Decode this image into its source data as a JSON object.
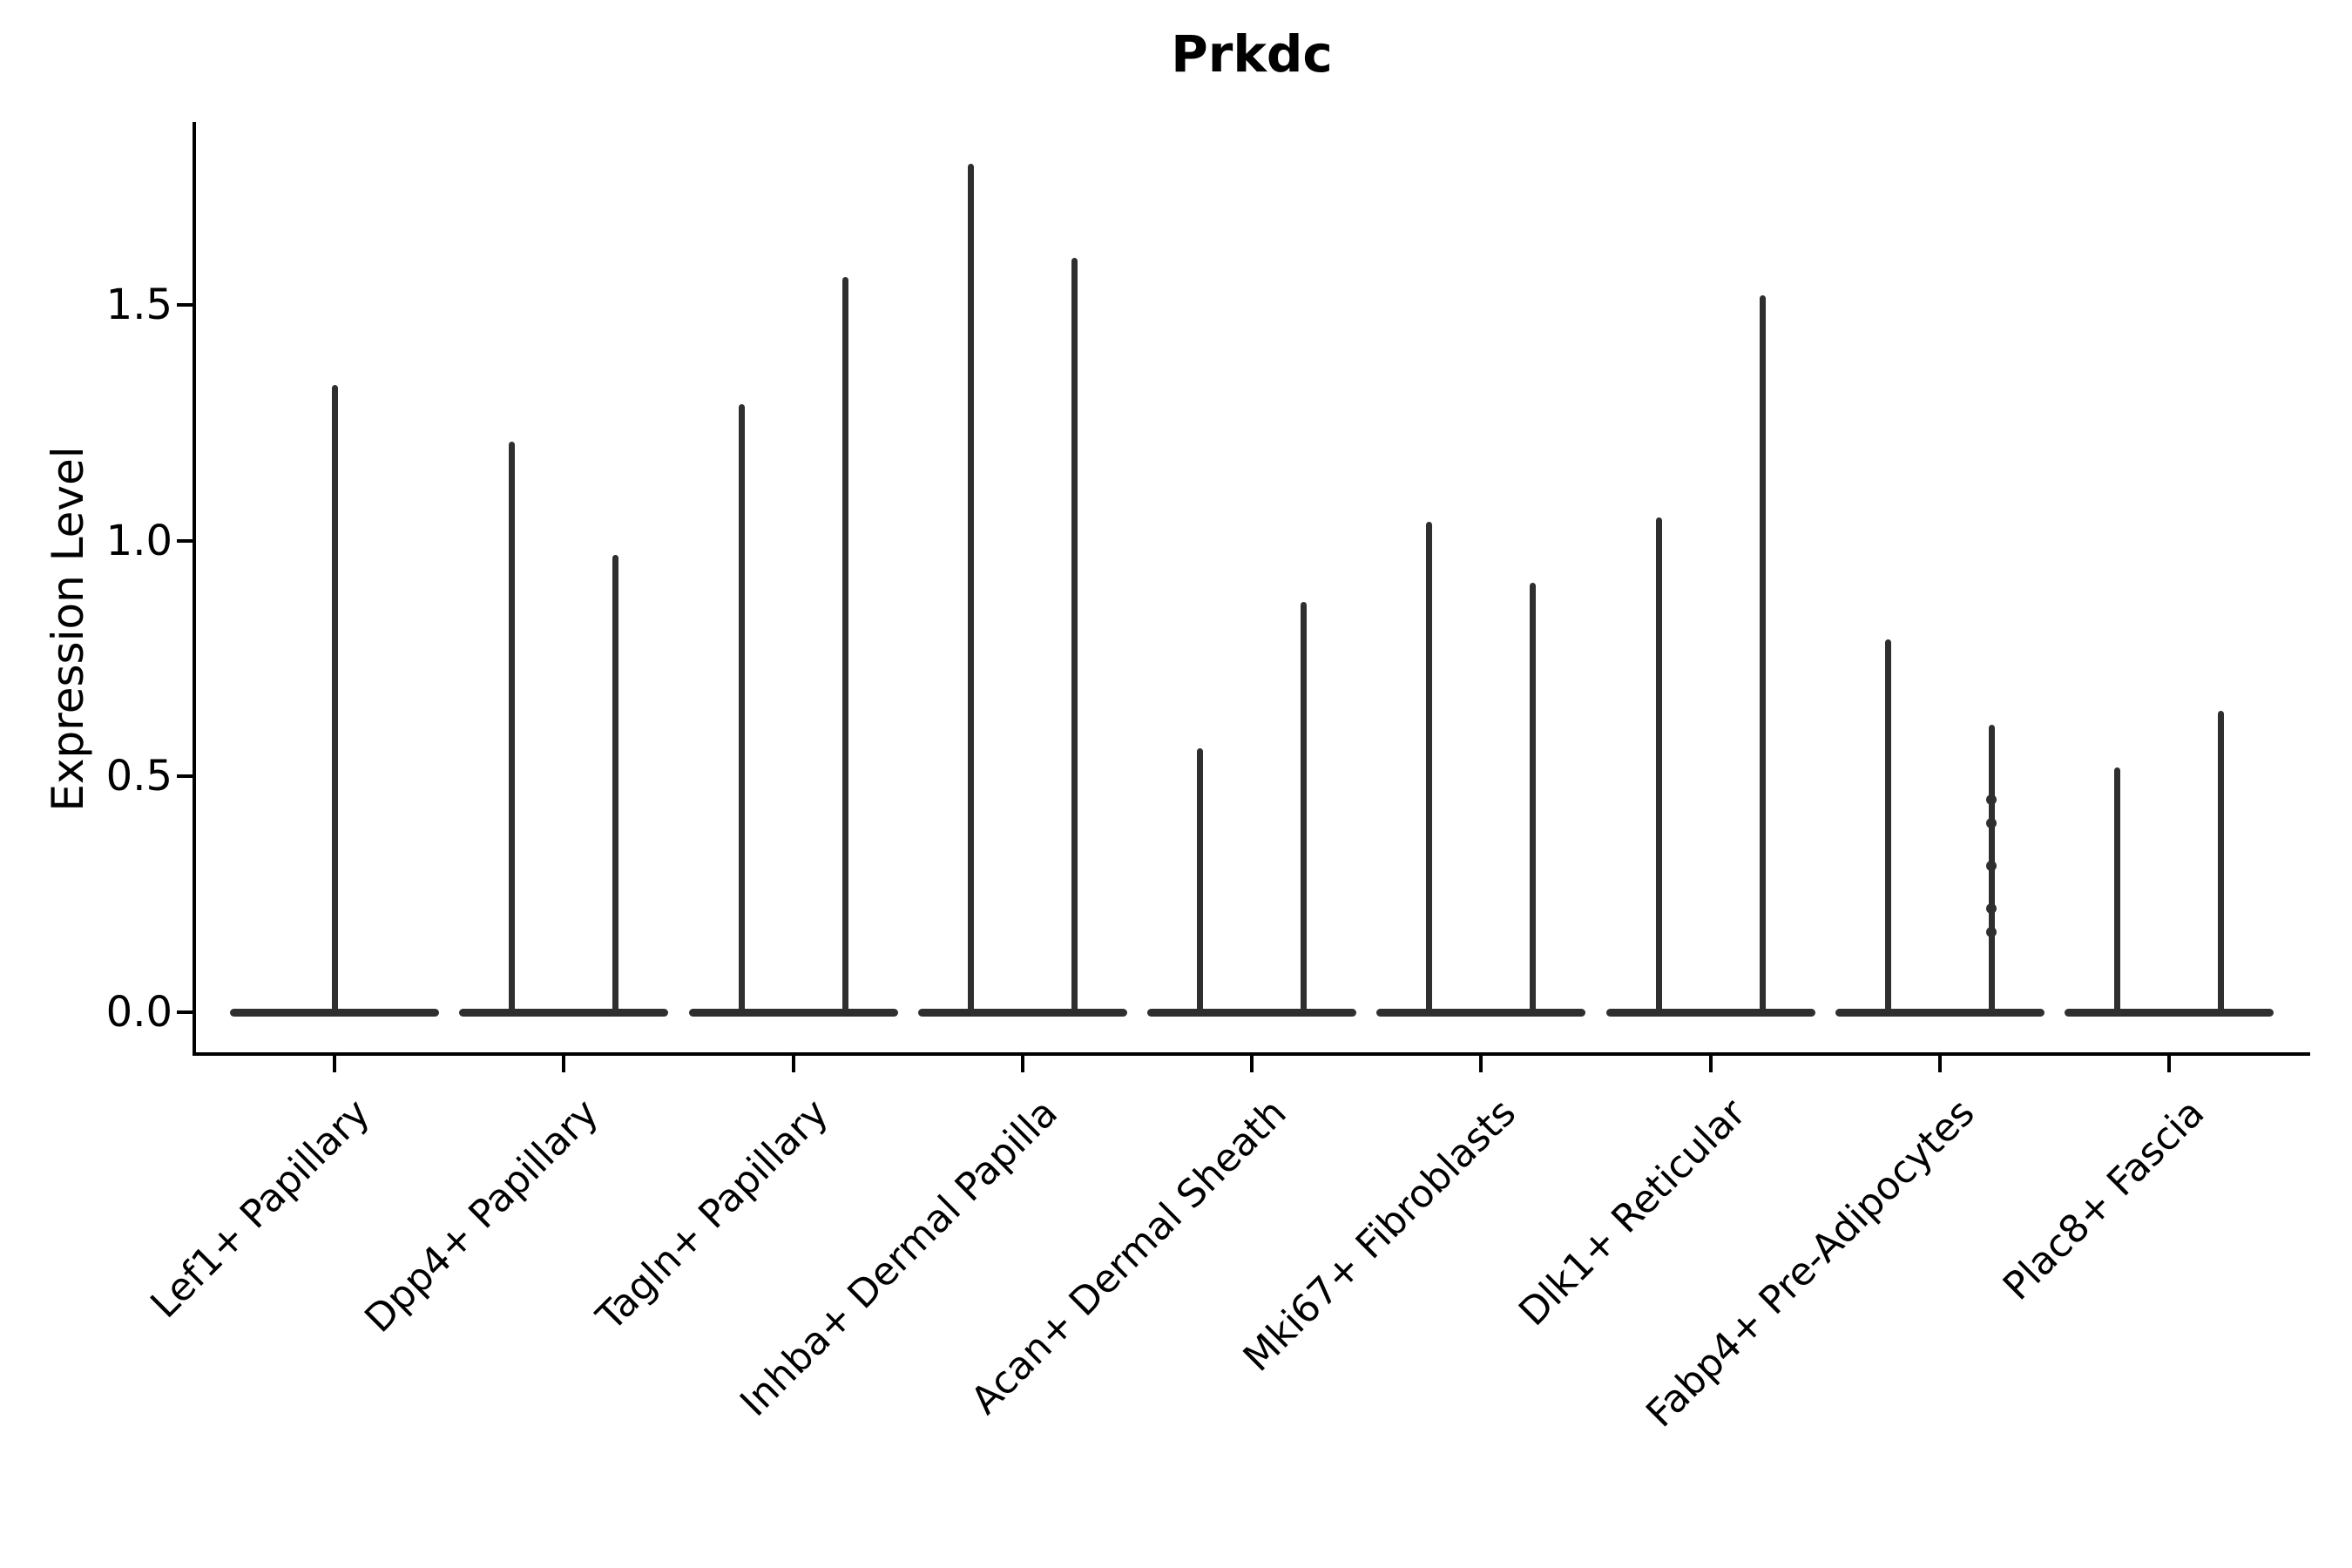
{
  "title": "Prkdc",
  "y_axis": {
    "label": "Expression Level",
    "tick_labels": [
      "0.0",
      "0.5",
      "1.0",
      "1.5"
    ]
  },
  "colors": {
    "violin": "#2f2f2f",
    "axis": "#000000",
    "background": "#ffffff",
    "text": "#000000"
  },
  "chart_data": {
    "type": "violin",
    "title": "Prkdc",
    "xlabel": "",
    "ylabel": "Expression Level",
    "ylim": [
      0.0,
      1.89
    ],
    "yticks": [
      0.0,
      0.5,
      1.0,
      1.5
    ],
    "grid": false,
    "legend": "none",
    "categories": [
      "Lef1+ Papillary",
      "Dpp4+ Papillary",
      "Tagln+ Papillary",
      "Inhba+ Dermal Papilla",
      "Acan+ Dermal Sheath",
      "Mki67+ Fibroblasts",
      "Dlk1+ Reticular",
      "Fabp4+ Pre-Adipocytes",
      "Plac8+ Fascia"
    ],
    "description": "Violin plot of Prkdc expression; each category shows a flat density body at 0 with thin needle-like tails reaching the listed maxima.",
    "series": [
      {
        "category": "Lef1+ Papillary",
        "needle_maxima": [
          1.33
        ]
      },
      {
        "category": "Dpp4+ Papillary",
        "needle_maxima": [
          1.21,
          0.97
        ]
      },
      {
        "category": "Tagln+ Papillary",
        "needle_maxima": [
          1.29,
          1.56
        ]
      },
      {
        "category": "Inhba+ Dermal Papilla",
        "needle_maxima": [
          1.8,
          1.6
        ]
      },
      {
        "category": "Acan+ Dermal Sheath",
        "needle_maxima": [
          0.56,
          0.87
        ]
      },
      {
        "category": "Mki67+ Fibroblasts",
        "needle_maxima": [
          1.04,
          0.91
        ]
      },
      {
        "category": "Dlk1+ Reticular",
        "needle_maxima": [
          1.05,
          1.52
        ]
      },
      {
        "category": "Fabp4+ Pre-Adipocytes",
        "needle_maxima": [
          0.79,
          0.61
        ],
        "points": [
          0.45,
          0.4,
          0.31,
          0.22,
          0.17
        ]
      },
      {
        "category": "Plac8+ Fascia",
        "needle_maxima": [
          0.52,
          0.64
        ]
      }
    ],
    "baseline_value": 0.0
  }
}
